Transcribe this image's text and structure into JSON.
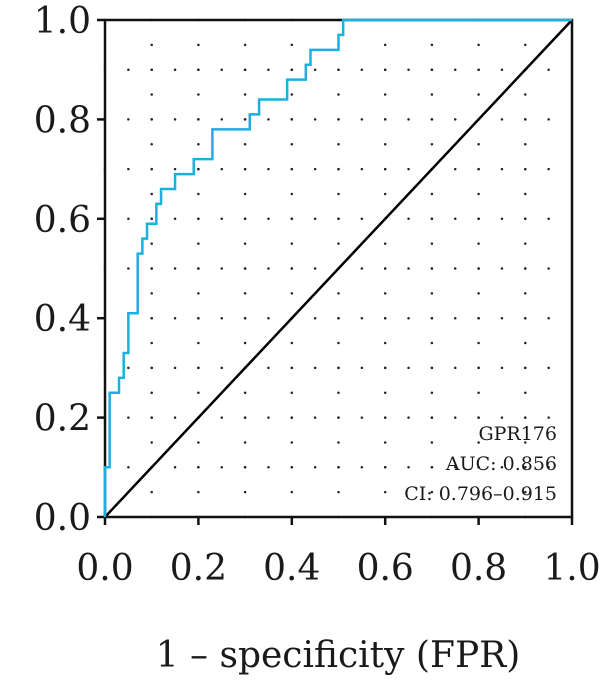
{
  "chart_data": {
    "type": "line",
    "title": "",
    "xlabel": "1 – specificity (FPR)",
    "ylabel": "",
    "xlim": [
      0,
      1
    ],
    "ylim": [
      0,
      1
    ],
    "x_ticks": [
      "0.0",
      "0.2",
      "0.4",
      "0.6",
      "0.8",
      "1.0"
    ],
    "y_ticks": [
      "0.0",
      "0.2",
      "0.4",
      "0.6",
      "0.8",
      "1.0"
    ],
    "grid": "dotted",
    "annotations": [
      "GPR176",
      "AUC: 0.856",
      "CI: 0.796–0.915"
    ],
    "annotation_placement": "bottom-right",
    "series": [
      {
        "color": "#1ab0e0",
        "x": [
          0,
          0,
          0.01,
          0.01,
          0.03,
          0.03,
          0.04,
          0.04,
          0.05,
          0.05,
          0.07,
          0.07,
          0.08,
          0.08,
          0.09,
          0.09,
          0.11,
          0.11,
          0.12,
          0.12,
          0.15,
          0.15,
          0.19,
          0.19,
          0.23,
          0.23,
          0.31,
          0.31,
          0.33,
          0.33,
          0.39,
          0.39,
          0.43,
          0.43,
          0.44,
          0.44,
          0.5,
          0.5,
          0.51,
          0.51,
          1
        ],
        "y": [
          0,
          0.1,
          0.1,
          0.25,
          0.25,
          0.28,
          0.28,
          0.33,
          0.33,
          0.41,
          0.41,
          0.53,
          0.53,
          0.56,
          0.56,
          0.59,
          0.59,
          0.63,
          0.63,
          0.66,
          0.66,
          0.69,
          0.69,
          0.72,
          0.72,
          0.78,
          0.78,
          0.81,
          0.81,
          0.84,
          0.84,
          0.88,
          0.88,
          0.91,
          0.91,
          0.94,
          0.94,
          0.97,
          0.97,
          1.0,
          1.0
        ]
      },
      {
        "color": "#000000",
        "x": [
          0,
          1
        ],
        "y": [
          0,
          1
        ]
      }
    ]
  }
}
